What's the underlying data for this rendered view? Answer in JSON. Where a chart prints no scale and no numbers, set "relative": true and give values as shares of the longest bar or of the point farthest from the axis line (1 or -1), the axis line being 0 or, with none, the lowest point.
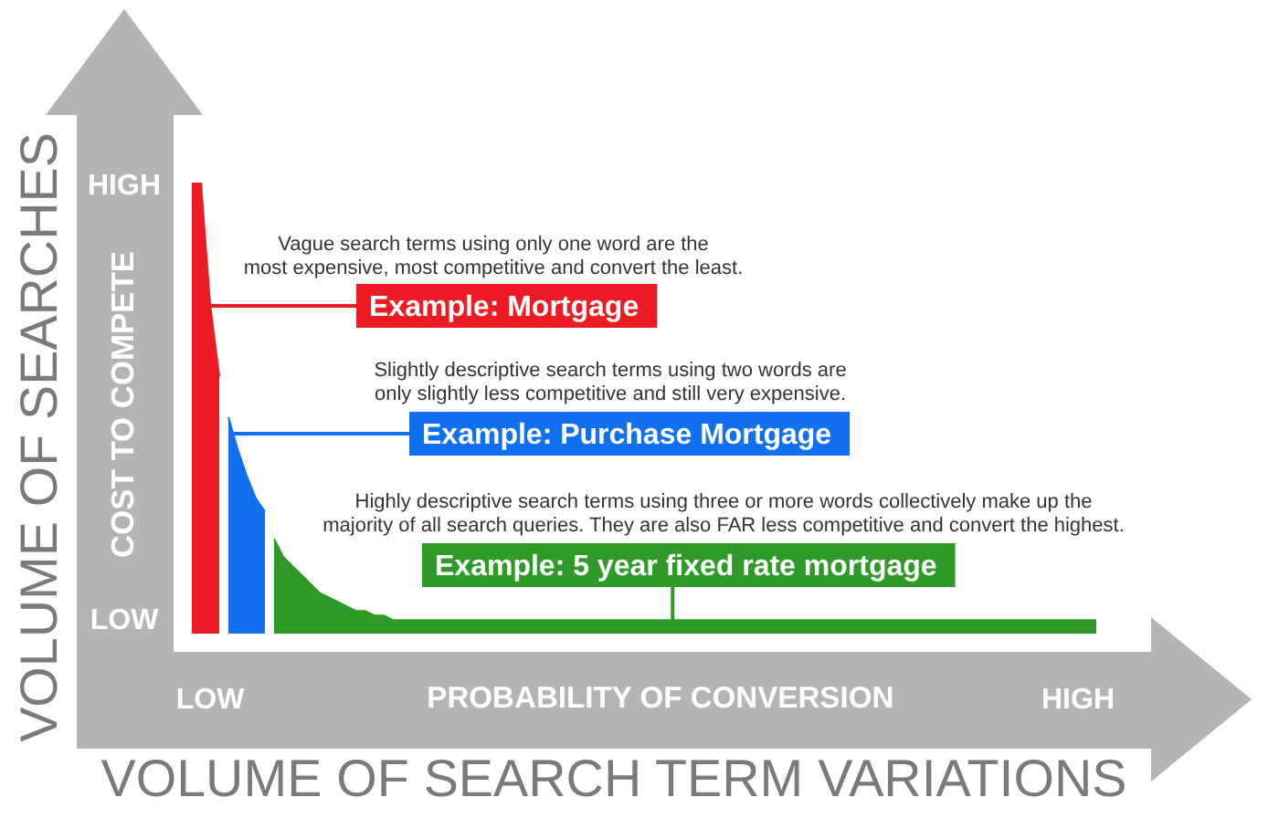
{
  "chart_data": {
    "type": "area",
    "relative": true,
    "xlabel": "VOLUME OF SEARCH TERM VARIATIONS",
    "ylabel": "VOLUME OF SEARCHES",
    "categories": [
      null,
      null,
      "LOW",
      null,
      null,
      null,
      null,
      null,
      null,
      null,
      null,
      null,
      null,
      null,
      null,
      null,
      null,
      null,
      null,
      null,
      null,
      null,
      null,
      null,
      null,
      null,
      null,
      null,
      null,
      null,
      null,
      null,
      null,
      null,
      null,
      null,
      null,
      null,
      null,
      null,
      null,
      null,
      null,
      null,
      null,
      null,
      null,
      null,
      null,
      null,
      null,
      null,
      null,
      null,
      null,
      null,
      null,
      null,
      null,
      null,
      null,
      null,
      null,
      null,
      null,
      null,
      null,
      null,
      null,
      null,
      null,
      null,
      null,
      null,
      null,
      null,
      null,
      null,
      null,
      null,
      null,
      null,
      null,
      null,
      null,
      null,
      null,
      null,
      null,
      null,
      null,
      null,
      null,
      null,
      null,
      null,
      null,
      "HIGH",
      null,
      null
    ],
    "annotations": [
      "HIGH",
      "LOW",
      "COST TO COMPETE",
      "PROBABILITY OF CONVERSION",
      "Vague search terms using only one word are the\nmost expensive, most competitive and convert the least.",
      "Example: Mortgage",
      "Slightly descriptive search terms using two words are\nonly slightly less competitive and still very expensive.",
      "Example: Purchase Mortgage",
      "Highly descriptive search terms using three or more words collectively make up the\nmajority of all search queries. They are also FAR less competitive and convert the highest.",
      "Example: 5 year fixed rate mortgage"
    ],
    "series": [
      {
        "color": "#ed1c24",
        "values": [
          1,
          1,
          0.73,
          0.57,
          null,
          null,
          null,
          null,
          null,
          null,
          null,
          null,
          null,
          null,
          null,
          null,
          null,
          null,
          null,
          null,
          null,
          null,
          null,
          null,
          null,
          null,
          null,
          null,
          null,
          null,
          null,
          null,
          null,
          null,
          null,
          null,
          null,
          null,
          null,
          null,
          null,
          null,
          null,
          null,
          null,
          null,
          null,
          null,
          null,
          null,
          null,
          null,
          null,
          null,
          null,
          null,
          null,
          null,
          null,
          null,
          null,
          null,
          null,
          null,
          null,
          null,
          null,
          null,
          null,
          null,
          null,
          null,
          null,
          null,
          null,
          null,
          null,
          null,
          null,
          null,
          null,
          null,
          null,
          null,
          null,
          null,
          null,
          null,
          null,
          null,
          null,
          null,
          null,
          null,
          null,
          null,
          null,
          null,
          null,
          null
        ]
      },
      {
        "color": "#1170ee",
        "values": [
          null,
          null,
          null,
          null,
          0.48,
          0.41,
          0.35,
          0.3,
          0.27,
          null,
          null,
          null,
          null,
          null,
          null,
          null,
          null,
          null,
          null,
          null,
          null,
          null,
          null,
          null,
          null,
          null,
          null,
          null,
          null,
          null,
          null,
          null,
          null,
          null,
          null,
          null,
          null,
          null,
          null,
          null,
          null,
          null,
          null,
          null,
          null,
          null,
          null,
          null,
          null,
          null,
          null,
          null,
          null,
          null,
          null,
          null,
          null,
          null,
          null,
          null,
          null,
          null,
          null,
          null,
          null,
          null,
          null,
          null,
          null,
          null,
          null,
          null,
          null,
          null,
          null,
          null,
          null,
          null,
          null,
          null,
          null,
          null,
          null,
          null,
          null,
          null,
          null,
          null,
          null,
          null,
          null,
          null,
          null,
          null,
          null,
          null,
          null,
          null,
          null,
          null
        ]
      },
      {
        "color": "#2f9a27",
        "values": [
          null,
          null,
          null,
          null,
          null,
          null,
          null,
          null,
          null,
          0.21,
          0.17,
          0.15,
          0.13,
          0.11,
          0.09,
          0.08,
          0.07,
          0.06,
          0.05,
          0.05,
          0.04,
          0.04,
          0.03,
          0.03,
          0.03,
          0.03,
          0.03,
          0.03,
          0.03,
          0.03,
          0.03,
          0.03,
          0.03,
          0.03,
          0.03,
          0.03,
          0.03,
          0.03,
          0.03,
          0.03,
          0.03,
          0.03,
          0.03,
          0.03,
          0.03,
          0.03,
          0.03,
          0.03,
          0.03,
          0.03,
          0.03,
          0.03,
          0.03,
          0.03,
          0.03,
          0.03,
          0.03,
          0.03,
          0.03,
          0.03,
          0.03,
          0.03,
          0.03,
          0.03,
          0.03,
          0.03,
          0.03,
          0.03,
          0.03,
          0.03,
          0.03,
          0.03,
          0.03,
          0.03,
          0.03,
          0.03,
          0.03,
          0.03,
          0.03,
          0.03,
          0.03,
          0.03,
          0.03,
          0.03,
          0.03,
          0.03,
          0.03,
          0.03,
          0.03,
          0.03,
          0.03,
          0.03,
          0.03,
          0.03,
          0.03,
          0.03,
          0.03,
          0.03,
          0.03,
          0.03
        ]
      }
    ]
  }
}
